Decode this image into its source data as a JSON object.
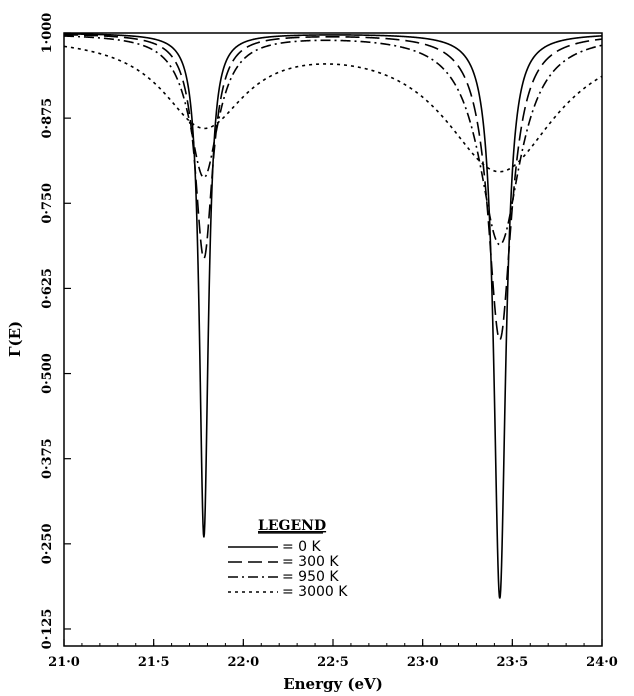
{
  "chart_data": {
    "type": "line",
    "xlabel": "Energy (eV)",
    "ylabel": "Γ(E)",
    "xlim": [
      21.0,
      24.0
    ],
    "ylim": [
      0.1,
      1.0
    ],
    "x_ticks": [
      "21·0",
      "21·5",
      "22·0",
      "22·5",
      "23·0",
      "23·5",
      "24·0"
    ],
    "y_ticks": [
      "0·125",
      "0·250",
      "0·375",
      "0·500",
      "0·625",
      "0·750",
      "0·875",
      "1·000"
    ],
    "legend_title": "LEGEND",
    "legend_placement": "lower-left",
    "dip_centers": [
      21.78,
      23.43
    ],
    "series": [
      {
        "name": "0 K",
        "legend_label": "=    0  K",
        "dash": "solid",
        "min_values": [
          0.26,
          0.17
        ],
        "widths": [
          0.03,
          0.04
        ]
      },
      {
        "name": "300 K",
        "legend_label": "=  300  K",
        "dash": "long-dash",
        "min_values": [
          0.67,
          0.55
        ],
        "widths": [
          0.06,
          0.08
        ]
      },
      {
        "name": "950 K",
        "legend_label": "=  950  K",
        "dash": "dash-dot",
        "min_values": [
          0.79,
          0.69
        ],
        "widths": [
          0.1,
          0.14
        ]
      },
      {
        "name": "3000 K",
        "legend_label": "= 3000  K",
        "dash": "dotted",
        "min_values": [
          0.87,
          0.8
        ],
        "widths": [
          0.28,
          0.38
        ]
      }
    ]
  }
}
